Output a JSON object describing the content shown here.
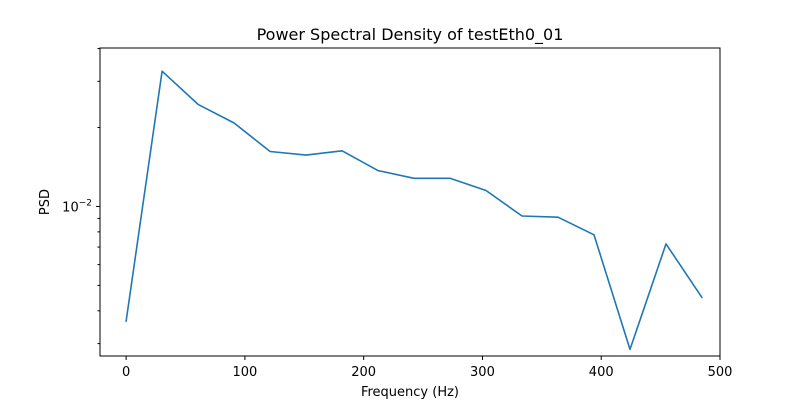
{
  "chart_data": {
    "type": "line",
    "title": "Power Spectral Density of testEth0_01",
    "xlabel": "Frequency (Hz)",
    "ylabel": "PSD",
    "yscale": "log",
    "xlim": [
      -22,
      500
    ],
    "ylim": [
      0.00269,
      0.0402
    ],
    "grid": false,
    "legend": "none",
    "line_color": "#1f77b4",
    "x_ticks": [
      0,
      100,
      200,
      300,
      400,
      500
    ],
    "x_tick_labels": [
      "0",
      "100",
      "200",
      "300",
      "400",
      "500"
    ],
    "y_major_tick_value": 0.01,
    "y_major_tick_label": {
      "base": "10",
      "exponent": "−2"
    },
    "y_minor_ticks": [
      0.003,
      0.004,
      0.005,
      0.006,
      0.007,
      0.008,
      0.009,
      0.02,
      0.03,
      0.04
    ],
    "series": [
      {
        "x": [
          0,
          30.3,
          60.6,
          90.9,
          121.2,
          151.5,
          181.8,
          212.1,
          242.4,
          272.7,
          303.0,
          333.3,
          363.6,
          393.9,
          424.2,
          454.5,
          484.8
        ],
        "y": [
          0.00365,
          0.0328,
          0.0245,
          0.0208,
          0.0162,
          0.0157,
          0.0163,
          0.0137,
          0.0128,
          0.0128,
          0.0115,
          0.0092,
          0.0091,
          0.0078,
          0.00285,
          0.0072,
          0.0045
        ]
      }
    ]
  }
}
